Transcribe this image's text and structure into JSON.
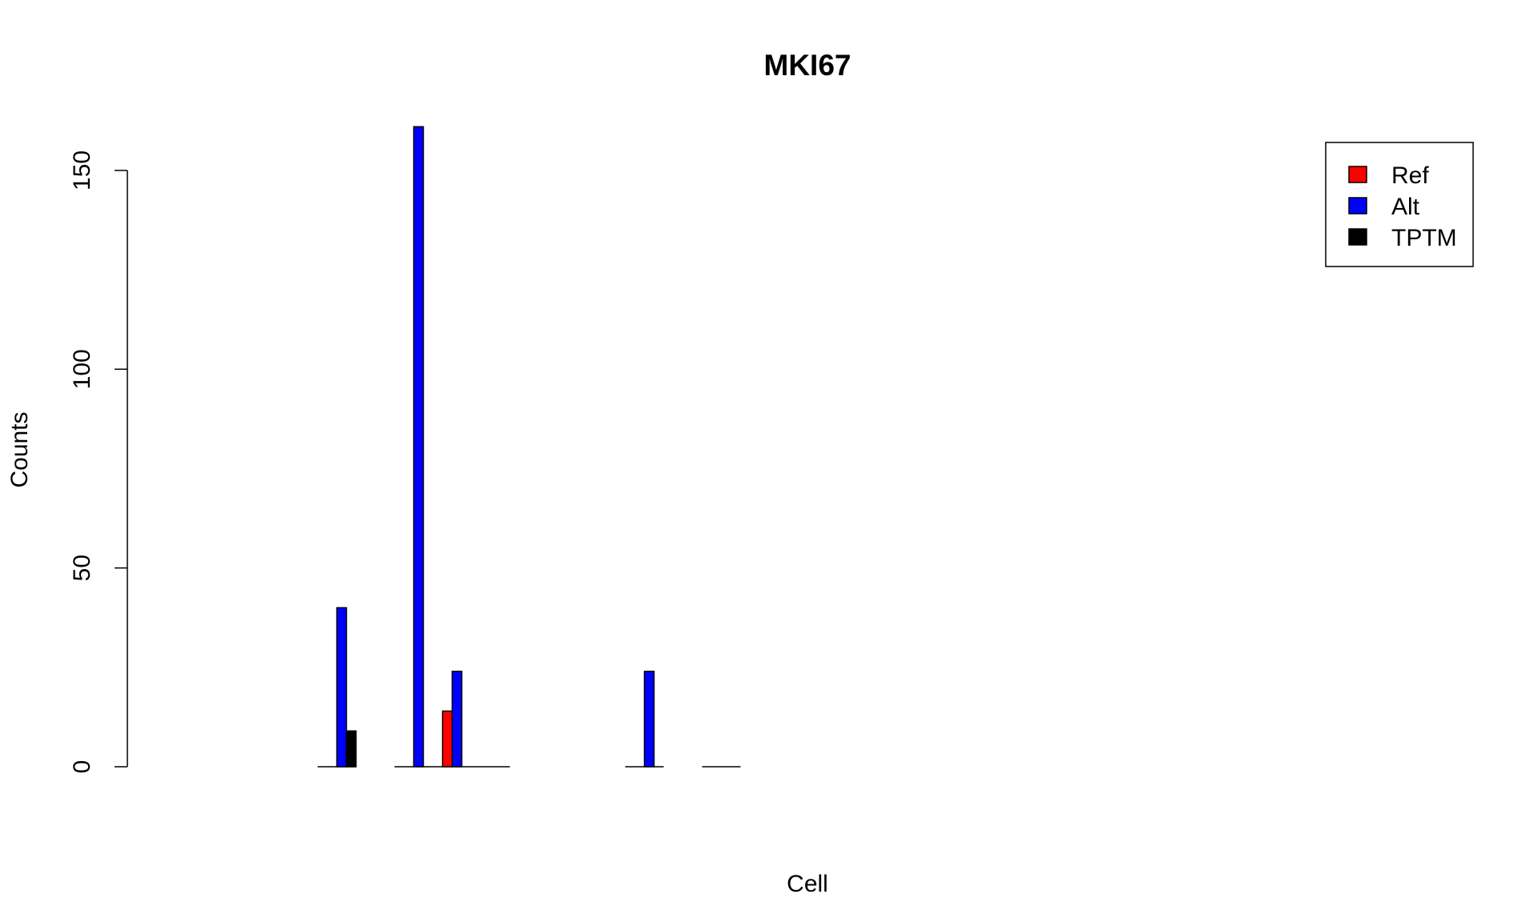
{
  "chart_data": {
    "type": "bar",
    "title": "MKI67",
    "xlabel": "Cell",
    "ylabel": "Counts",
    "ylim": [
      0,
      165
    ],
    "yticks": [
      0,
      50,
      100,
      150
    ],
    "grid": false,
    "legend_position": "top-right",
    "categories": [
      "",
      "",
      "",
      "",
      "",
      "",
      "",
      "",
      "",
      "",
      "",
      "",
      "",
      "",
      "",
      "",
      ""
    ],
    "series": [
      {
        "name": "Ref",
        "color": "#ff0000",
        "values": [
          0,
          0,
          0,
          0,
          0,
          0,
          0,
          0,
          14,
          0,
          0,
          0,
          0,
          0,
          0,
          0,
          0
        ]
      },
      {
        "name": "Alt",
        "color": "#0000ff",
        "values": [
          0,
          0,
          0,
          0,
          0,
          40,
          0,
          161,
          24,
          0,
          0,
          0,
          0,
          24,
          0,
          0,
          0
        ]
      },
      {
        "name": "TPTM",
        "color": "#000000",
        "values": [
          0,
          0,
          0,
          0,
          0,
          9,
          0,
          0,
          0,
          0,
          0,
          0,
          0,
          0,
          0,
          0,
          0
        ]
      }
    ],
    "baseline_groups": [
      5,
      7,
      8,
      9,
      13,
      15
    ]
  }
}
